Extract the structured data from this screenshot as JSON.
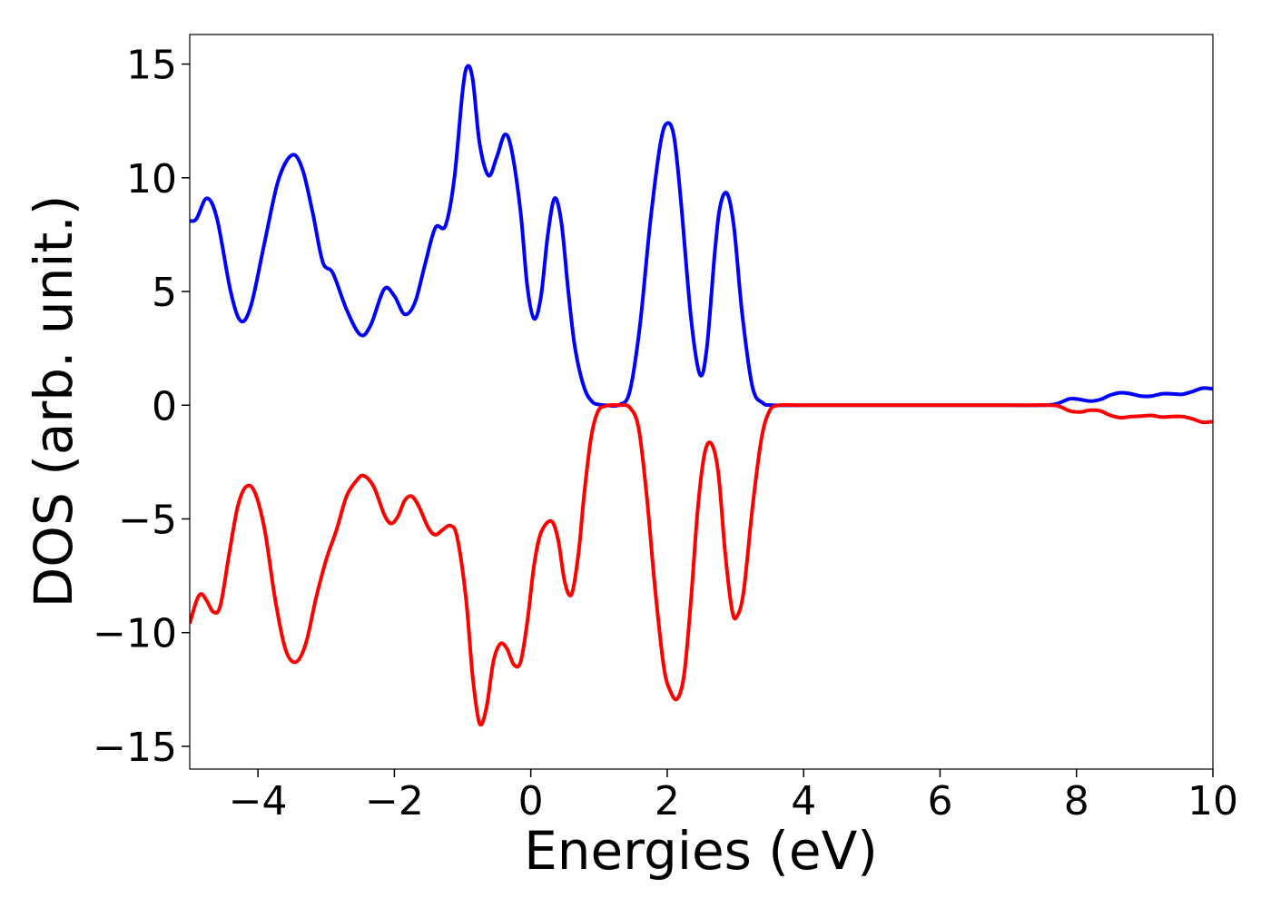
{
  "chart_data": {
    "type": "line",
    "title": "",
    "xlabel": "Energies (eV)",
    "ylabel": "DOS (arb. unit.)",
    "xlim": [
      -5,
      10
    ],
    "ylim": [
      -16,
      16.3
    ],
    "xticks": [
      -4,
      -2,
      0,
      2,
      4,
      6,
      8,
      10
    ],
    "xtick_labels": [
      "−4",
      "−2",
      "0",
      "2",
      "4",
      "6",
      "8",
      "10"
    ],
    "yticks": [
      -15,
      -10,
      -5,
      0,
      5,
      10,
      15
    ],
    "ytick_labels": [
      "−15",
      "−10",
      "−5",
      "0",
      "5",
      "10",
      "15"
    ],
    "grid": false,
    "legend": "none",
    "series": [
      {
        "color": "#0000ff",
        "points": [
          [
            -5.0,
            8.1
          ],
          [
            -4.9,
            8.2
          ],
          [
            -4.75,
            9.1
          ],
          [
            -4.6,
            8.2
          ],
          [
            -4.4,
            5.0
          ],
          [
            -4.25,
            3.7
          ],
          [
            -4.1,
            4.4
          ],
          [
            -3.9,
            7.2
          ],
          [
            -3.7,
            9.9
          ],
          [
            -3.5,
            11.0
          ],
          [
            -3.35,
            10.4
          ],
          [
            -3.2,
            8.5
          ],
          [
            -3.05,
            6.3
          ],
          [
            -2.9,
            5.8
          ],
          [
            -2.7,
            4.2
          ],
          [
            -2.5,
            3.1
          ],
          [
            -2.35,
            3.5
          ],
          [
            -2.15,
            5.1
          ],
          [
            -2.0,
            4.8
          ],
          [
            -1.85,
            4.0
          ],
          [
            -1.7,
            4.5
          ],
          [
            -1.55,
            6.2
          ],
          [
            -1.4,
            7.8
          ],
          [
            -1.25,
            7.9
          ],
          [
            -1.12,
            10.0
          ],
          [
            -1.0,
            13.8
          ],
          [
            -0.93,
            14.9
          ],
          [
            -0.85,
            14.3
          ],
          [
            -0.75,
            11.5
          ],
          [
            -0.62,
            10.1
          ],
          [
            -0.5,
            10.9
          ],
          [
            -0.38,
            11.9
          ],
          [
            -0.28,
            11.2
          ],
          [
            -0.15,
            8.5
          ],
          [
            -0.05,
            5.2
          ],
          [
            0.05,
            3.8
          ],
          [
            0.15,
            4.8
          ],
          [
            0.25,
            7.5
          ],
          [
            0.35,
            9.1
          ],
          [
            0.45,
            8.0
          ],
          [
            0.55,
            5.0
          ],
          [
            0.65,
            2.5
          ],
          [
            0.78,
            0.8
          ],
          [
            0.9,
            0.15
          ],
          [
            1.0,
            0.03
          ],
          [
            1.1,
            0.0
          ],
          [
            1.3,
            0.02
          ],
          [
            1.45,
            0.6
          ],
          [
            1.6,
            3.5
          ],
          [
            1.75,
            8.0
          ],
          [
            1.9,
            11.5
          ],
          [
            2.0,
            12.4
          ],
          [
            2.1,
            11.8
          ],
          [
            2.2,
            9.0
          ],
          [
            2.35,
            3.8
          ],
          [
            2.48,
            1.35
          ],
          [
            2.58,
            2.5
          ],
          [
            2.7,
            6.8
          ],
          [
            2.78,
            8.8
          ],
          [
            2.88,
            9.3
          ],
          [
            2.98,
            7.8
          ],
          [
            3.1,
            4.0
          ],
          [
            3.25,
            0.8
          ],
          [
            3.4,
            0.1
          ],
          [
            3.55,
            0.0
          ],
          [
            4.0,
            0.0
          ],
          [
            5.0,
            0.0
          ],
          [
            6.0,
            0.0
          ],
          [
            7.0,
            0.0
          ],
          [
            7.5,
            0.0
          ],
          [
            7.7,
            0.05
          ],
          [
            7.9,
            0.28
          ],
          [
            8.05,
            0.25
          ],
          [
            8.2,
            0.18
          ],
          [
            8.35,
            0.25
          ],
          [
            8.5,
            0.45
          ],
          [
            8.65,
            0.55
          ],
          [
            8.8,
            0.5
          ],
          [
            8.95,
            0.4
          ],
          [
            9.1,
            0.4
          ],
          [
            9.25,
            0.5
          ],
          [
            9.4,
            0.5
          ],
          [
            9.55,
            0.48
          ],
          [
            9.7,
            0.6
          ],
          [
            9.85,
            0.75
          ],
          [
            10.0,
            0.72
          ]
        ]
      },
      {
        "color": "#ff0000",
        "points": [
          [
            -5.0,
            -9.6
          ],
          [
            -4.9,
            -8.6
          ],
          [
            -4.83,
            -8.3
          ],
          [
            -4.75,
            -8.6
          ],
          [
            -4.65,
            -9.1
          ],
          [
            -4.55,
            -8.8
          ],
          [
            -4.42,
            -6.5
          ],
          [
            -4.3,
            -4.5
          ],
          [
            -4.18,
            -3.6
          ],
          [
            -4.05,
            -3.8
          ],
          [
            -3.9,
            -5.5
          ],
          [
            -3.75,
            -8.5
          ],
          [
            -3.6,
            -10.7
          ],
          [
            -3.45,
            -11.3
          ],
          [
            -3.3,
            -10.5
          ],
          [
            -3.15,
            -8.5
          ],
          [
            -3.0,
            -6.8
          ],
          [
            -2.85,
            -5.5
          ],
          [
            -2.7,
            -4.0
          ],
          [
            -2.55,
            -3.3
          ],
          [
            -2.45,
            -3.1
          ],
          [
            -2.3,
            -3.6
          ],
          [
            -2.15,
            -4.8
          ],
          [
            -2.05,
            -5.2
          ],
          [
            -1.95,
            -4.9
          ],
          [
            -1.85,
            -4.2
          ],
          [
            -1.75,
            -4.0
          ],
          [
            -1.65,
            -4.4
          ],
          [
            -1.5,
            -5.4
          ],
          [
            -1.4,
            -5.7
          ],
          [
            -1.3,
            -5.5
          ],
          [
            -1.18,
            -5.3
          ],
          [
            -1.08,
            -5.8
          ],
          [
            -0.95,
            -8.5
          ],
          [
            -0.85,
            -12.0
          ],
          [
            -0.75,
            -14.0
          ],
          [
            -0.65,
            -13.3
          ],
          [
            -0.55,
            -11.3
          ],
          [
            -0.45,
            -10.5
          ],
          [
            -0.35,
            -10.7
          ],
          [
            -0.25,
            -11.4
          ],
          [
            -0.15,
            -11.3
          ],
          [
            -0.05,
            -9.5
          ],
          [
            0.05,
            -7.0
          ],
          [
            0.15,
            -5.6
          ],
          [
            0.3,
            -5.1
          ],
          [
            0.4,
            -5.9
          ],
          [
            0.5,
            -7.8
          ],
          [
            0.6,
            -8.3
          ],
          [
            0.7,
            -6.5
          ],
          [
            0.78,
            -4.0
          ],
          [
            0.88,
            -1.5
          ],
          [
            0.98,
            -0.3
          ],
          [
            1.1,
            -0.03
          ],
          [
            1.3,
            0.0
          ],
          [
            1.45,
            -0.1
          ],
          [
            1.58,
            -1.0
          ],
          [
            1.7,
            -4.0
          ],
          [
            1.82,
            -8.0
          ],
          [
            1.95,
            -11.5
          ],
          [
            2.05,
            -12.6
          ],
          [
            2.15,
            -12.9
          ],
          [
            2.25,
            -11.8
          ],
          [
            2.35,
            -8.5
          ],
          [
            2.45,
            -4.5
          ],
          [
            2.55,
            -2.1
          ],
          [
            2.65,
            -1.7
          ],
          [
            2.75,
            -3.0
          ],
          [
            2.85,
            -6.5
          ],
          [
            2.95,
            -9.0
          ],
          [
            3.02,
            -9.3
          ],
          [
            3.12,
            -8.2
          ],
          [
            3.25,
            -4.5
          ],
          [
            3.38,
            -1.5
          ],
          [
            3.5,
            -0.25
          ],
          [
            3.65,
            0.0
          ],
          [
            4.0,
            0.0
          ],
          [
            5.0,
            0.0
          ],
          [
            6.0,
            0.0
          ],
          [
            7.0,
            0.0
          ],
          [
            7.6,
            0.0
          ],
          [
            7.75,
            -0.05
          ],
          [
            7.9,
            -0.25
          ],
          [
            8.05,
            -0.3
          ],
          [
            8.2,
            -0.22
          ],
          [
            8.35,
            -0.25
          ],
          [
            8.5,
            -0.45
          ],
          [
            8.65,
            -0.55
          ],
          [
            8.8,
            -0.5
          ],
          [
            8.95,
            -0.48
          ],
          [
            9.1,
            -0.45
          ],
          [
            9.25,
            -0.52
          ],
          [
            9.4,
            -0.5
          ],
          [
            9.55,
            -0.5
          ],
          [
            9.7,
            -0.6
          ],
          [
            9.85,
            -0.75
          ],
          [
            10.0,
            -0.72
          ]
        ]
      }
    ]
  }
}
